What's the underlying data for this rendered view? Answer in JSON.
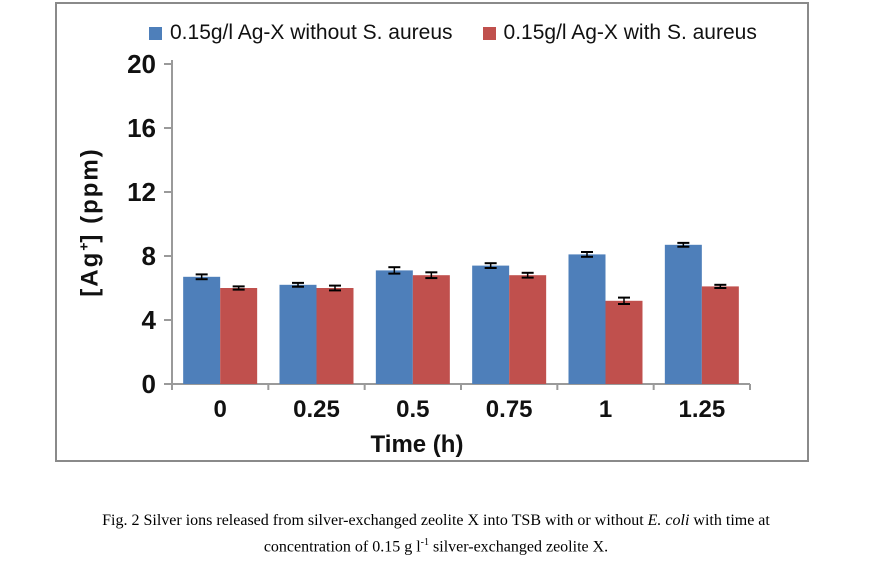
{
  "chart_data": {
    "type": "bar",
    "categories": [
      "0",
      "0.25",
      "0.5",
      "0.75",
      "1",
      "1.25"
    ],
    "series": [
      {
        "name": "0.15g/l Ag-X without S. aureus",
        "color": "#4e7fba",
        "values": [
          6.7,
          6.2,
          7.1,
          7.4,
          8.1,
          8.7
        ],
        "errors": [
          0.15,
          0.12,
          0.2,
          0.15,
          0.15,
          0.12
        ]
      },
      {
        "name": "0.15g/l Ag-X with S. aureus",
        "color": "#c0504d",
        "values": [
          6.0,
          6.0,
          6.8,
          6.8,
          5.2,
          6.1
        ],
        "errors": [
          0.1,
          0.15,
          0.18,
          0.15,
          0.2,
          0.1
        ]
      }
    ],
    "ylabel_pre": "[Ag",
    "ylabel_sup": "+",
    "ylabel_post": "] (ppm)",
    "xlabel": "Time (h)",
    "yticks": [
      0,
      4,
      8,
      12,
      16,
      20
    ],
    "ylim": [
      0,
      20
    ],
    "grid": "off",
    "legend_position": "top",
    "axis_color": "#9a9a9a",
    "error_bar_color": "#000000"
  },
  "caption": {
    "line1_pre": "Fig. 2 Silver ions released from silver-exchanged zeolite X into TSB with or without ",
    "line1_italic": "E. coli",
    "line1_post": " with time at",
    "line2_pre": "concentration of 0.15 g l",
    "line2_sup": "-1",
    "line2_post": " silver-exchanged zeolite X."
  }
}
